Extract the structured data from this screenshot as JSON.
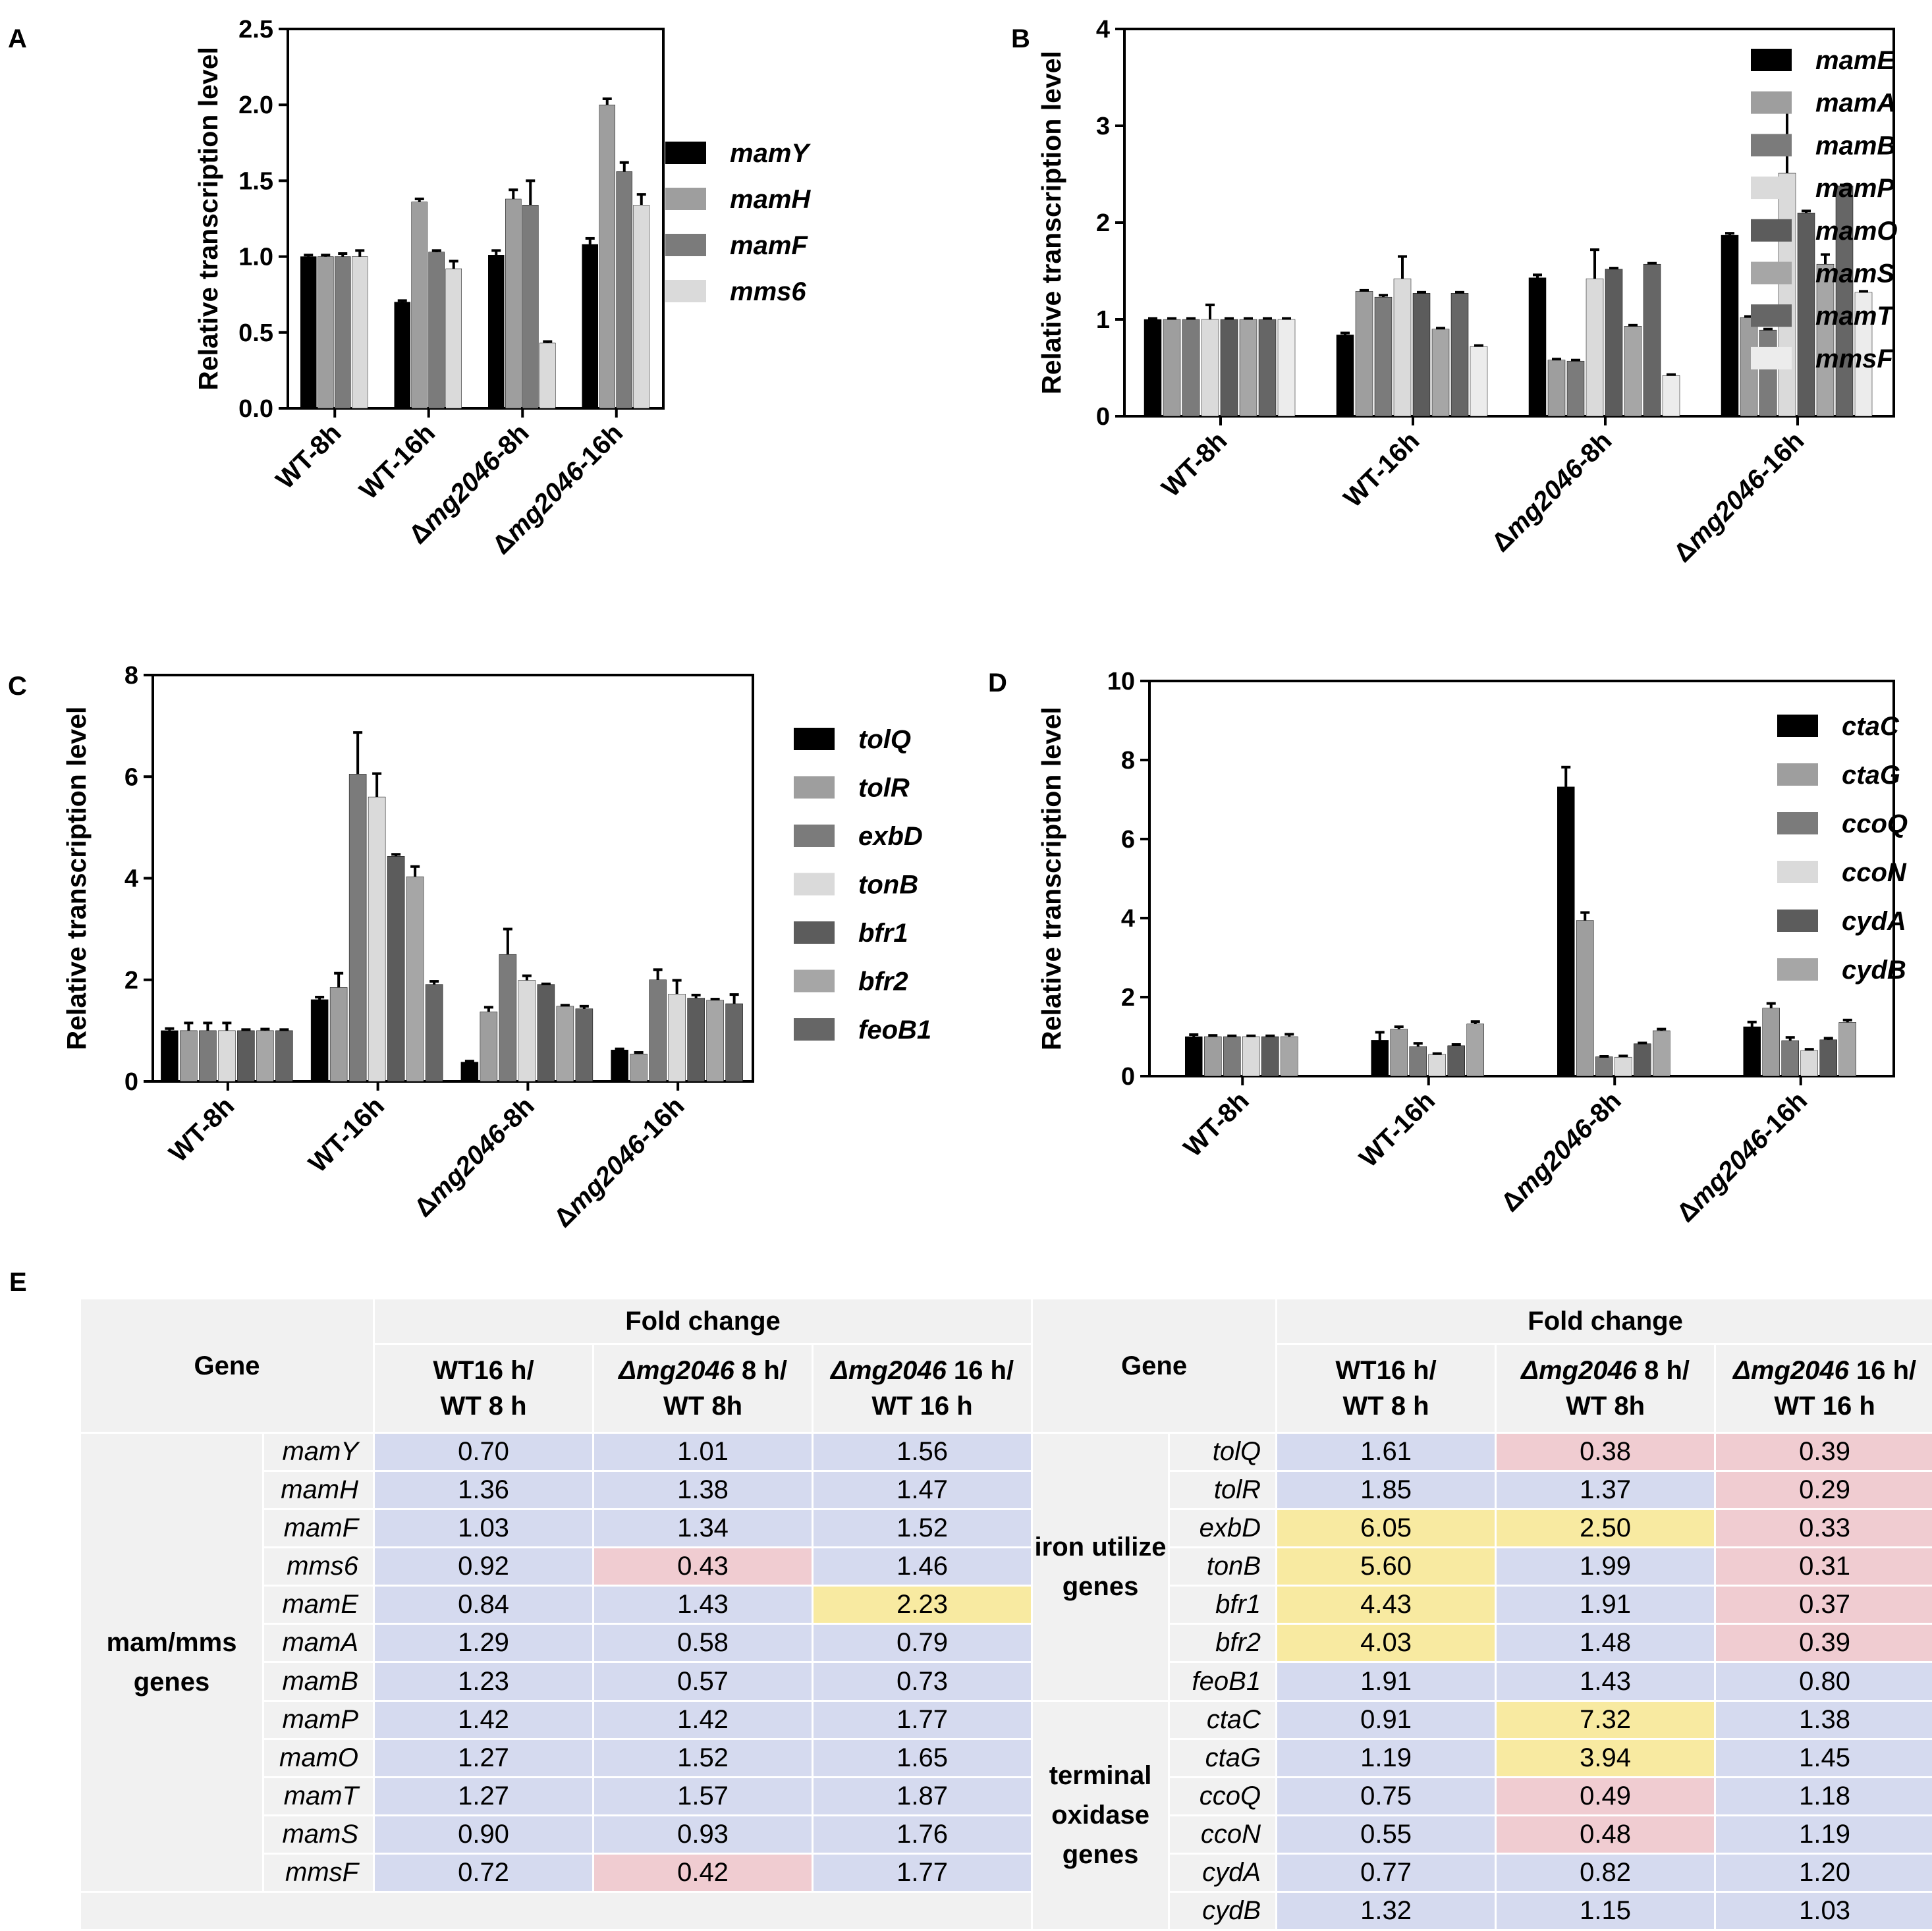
{
  "chart_data": [
    {
      "panel": "A",
      "type": "bar",
      "title": "",
      "xlabel": "",
      "ylabel": "Relative transcription level",
      "ylim": [
        0,
        2.5
      ],
      "yticks": [
        "0.0",
        "0.5",
        "1.0",
        "1.5",
        "2.0",
        "2.5"
      ],
      "ytick_values": [
        0,
        0.5,
        1.0,
        1.5,
        2.0,
        2.5
      ],
      "categories": [
        "WT-8h",
        "WT-16h",
        "Δmg2046-8h",
        "Δmg2046-16h"
      ],
      "series": [
        {
          "name": "mamY",
          "color": "#000000",
          "values": [
            1.0,
            0.7,
            1.01,
            1.08
          ],
          "errors": [
            0.01,
            0.01,
            0.03,
            0.04
          ]
        },
        {
          "name": "mamH",
          "color": "#9e9e9e",
          "values": [
            1.0,
            1.36,
            1.38,
            2.0
          ],
          "errors": [
            0.01,
            0.02,
            0.06,
            0.04
          ]
        },
        {
          "name": "mamF",
          "color": "#7b7b7b",
          "values": [
            1.0,
            1.03,
            1.34,
            1.56
          ],
          "errors": [
            0.02,
            0.01,
            0.16,
            0.06
          ]
        },
        {
          "name": "mms6",
          "color": "#dadada",
          "values": [
            1.0,
            0.92,
            0.43,
            1.34
          ],
          "errors": [
            0.04,
            0.05,
            0.01,
            0.07
          ]
        }
      ]
    },
    {
      "panel": "B",
      "type": "bar",
      "title": "",
      "xlabel": "",
      "ylabel": "Relative transcription level",
      "ylim": [
        0,
        4
      ],
      "yticks": [
        "0",
        "1",
        "2",
        "3",
        "4"
      ],
      "ytick_values": [
        0,
        1,
        2,
        3,
        4
      ],
      "categories": [
        "WT-8h",
        "WT-16h",
        "Δmg2046-8h",
        "Δmg2046-16h"
      ],
      "series": [
        {
          "name": "mamE",
          "color": "#000000",
          "values": [
            1.0,
            0.84,
            1.43,
            1.87
          ],
          "errors": [
            0.01,
            0.02,
            0.03,
            0.02
          ]
        },
        {
          "name": "mamA",
          "color": "#9e9e9e",
          "values": [
            1.0,
            1.29,
            0.58,
            1.02
          ],
          "errors": [
            0.01,
            0.01,
            0.01,
            0.01
          ]
        },
        {
          "name": "mamB",
          "color": "#7b7b7b",
          "values": [
            1.0,
            1.23,
            0.57,
            0.89
          ],
          "errors": [
            0.01,
            0.02,
            0.01,
            0.01
          ]
        },
        {
          "name": "mamP",
          "color": "#dadada",
          "values": [
            1.0,
            1.42,
            1.42,
            2.51
          ],
          "errors": [
            0.15,
            0.23,
            0.3,
            0.63
          ]
        },
        {
          "name": "mamO",
          "color": "#5c5c5c",
          "values": [
            1.0,
            1.27,
            1.52,
            2.1
          ],
          "errors": [
            0.01,
            0.01,
            0.01,
            0.02
          ]
        },
        {
          "name": "mamS",
          "color": "#a6a6a6",
          "values": [
            1.0,
            0.9,
            0.93,
            1.57
          ],
          "errors": [
            0.01,
            0.01,
            0.01,
            0.1
          ]
        },
        {
          "name": "mamT",
          "color": "#666666",
          "values": [
            1.0,
            1.27,
            1.57,
            2.38
          ],
          "errors": [
            0.01,
            0.01,
            0.01,
            0.01
          ]
        },
        {
          "name": "mmsF",
          "color": "#ececec",
          "values": [
            1.0,
            0.72,
            0.42,
            1.28
          ],
          "errors": [
            0.01,
            0.01,
            0.01,
            0.01
          ]
        }
      ]
    },
    {
      "panel": "C",
      "type": "bar",
      "title": "",
      "xlabel": "",
      "ylabel": "Relative transcription level",
      "ylim": [
        0,
        8
      ],
      "yticks": [
        "0",
        "2",
        "4",
        "6",
        "8"
      ],
      "ytick_values": [
        0,
        2,
        4,
        6,
        8
      ],
      "categories": [
        "WT-8h",
        "WT-16h",
        "Δmg2046-8h",
        "Δmg2046-16h"
      ],
      "series": [
        {
          "name": "tolQ",
          "color": "#000000",
          "values": [
            1.0,
            1.61,
            0.38,
            0.62
          ],
          "errors": [
            0.04,
            0.05,
            0.02,
            0.02
          ]
        },
        {
          "name": "tolR",
          "color": "#9e9e9e",
          "values": [
            1.0,
            1.85,
            1.37,
            0.54
          ],
          "errors": [
            0.15,
            0.28,
            0.09,
            0.03
          ]
        },
        {
          "name": "exbD",
          "color": "#7b7b7b",
          "values": [
            1.0,
            6.05,
            2.5,
            2.0
          ],
          "errors": [
            0.15,
            0.82,
            0.5,
            0.2
          ]
        },
        {
          "name": "tonB",
          "color": "#dadada",
          "values": [
            1.0,
            5.6,
            1.99,
            1.72
          ],
          "errors": [
            0.15,
            0.46,
            0.09,
            0.27
          ]
        },
        {
          "name": "bfr1",
          "color": "#5c5c5c",
          "values": [
            1.0,
            4.43,
            1.91,
            1.64
          ],
          "errors": [
            0.02,
            0.04,
            0.01,
            0.06
          ]
        },
        {
          "name": "bfr2",
          "color": "#a6a6a6",
          "values": [
            1.0,
            4.03,
            1.48,
            1.6
          ],
          "errors": [
            0.03,
            0.2,
            0.02,
            0.02
          ]
        },
        {
          "name": "feoB1",
          "color": "#666666",
          "values": [
            1.0,
            1.91,
            1.43,
            1.53
          ],
          "errors": [
            0.02,
            0.06,
            0.05,
            0.18
          ]
        }
      ]
    },
    {
      "panel": "D",
      "type": "bar",
      "title": "",
      "xlabel": "",
      "ylabel": "Relative transcription level",
      "ylim": [
        0,
        10
      ],
      "yticks": [
        "0",
        "2",
        "4",
        "6",
        "8",
        "10"
      ],
      "ytick_values": [
        0,
        2,
        4,
        6,
        8,
        10
      ],
      "categories": [
        "WT-8h",
        "WT-16h",
        "Δmg2046-8h",
        "Δmg2046-16h"
      ],
      "series": [
        {
          "name": "ctaC",
          "color": "#000000",
          "values": [
            1.0,
            0.91,
            7.32,
            1.25
          ],
          "errors": [
            0.05,
            0.2,
            0.5,
            0.12
          ]
        },
        {
          "name": "ctaG",
          "color": "#9e9e9e",
          "values": [
            1.0,
            1.19,
            3.94,
            1.72
          ],
          "errors": [
            0.03,
            0.06,
            0.2,
            0.12
          ]
        },
        {
          "name": "ccoQ",
          "color": "#7b7b7b",
          "values": [
            1.0,
            0.75,
            0.49,
            0.9
          ],
          "errors": [
            0.02,
            0.08,
            0.01,
            0.08
          ]
        },
        {
          "name": "ccoN",
          "color": "#dadada",
          "values": [
            1.0,
            0.55,
            0.48,
            0.65
          ],
          "errors": [
            0.02,
            0.02,
            0.03,
            0.03
          ]
        },
        {
          "name": "cydA",
          "color": "#5c5c5c",
          "values": [
            1.0,
            0.77,
            0.82,
            0.92
          ],
          "errors": [
            0.02,
            0.03,
            0.02,
            0.04
          ]
        },
        {
          "name": "cydB",
          "color": "#a6a6a6",
          "values": [
            1.0,
            1.32,
            1.15,
            1.36
          ],
          "errors": [
            0.06,
            0.06,
            0.04,
            0.06
          ]
        }
      ]
    }
  ],
  "panel_e": {
    "letter": "E",
    "gene_header": "Gene",
    "fold_change_header": "Fold change",
    "col_headers": [
      {
        "prefix": "WT16 h/",
        "prefix_italic": "",
        "line2": "WT 8 h"
      },
      {
        "prefix": " 8 h/",
        "prefix_italic": "Δmg2046",
        "line2": "WT 8h"
      },
      {
        "prefix": " 16 h/",
        "prefix_italic": "Δmg2046",
        "line2": "WT 16 h"
      }
    ],
    "left_group": "mam/mms genes",
    "left_rows": [
      {
        "gene": "mamY",
        "values": [
          "0.70",
          "1.01",
          "1.56"
        ],
        "status": [
          "n",
          "n",
          "n"
        ]
      },
      {
        "gene": "mamH",
        "values": [
          "1.36",
          "1.38",
          "1.47"
        ],
        "status": [
          "n",
          "n",
          "n"
        ]
      },
      {
        "gene": "mamF",
        "values": [
          "1.03",
          "1.34",
          "1.52"
        ],
        "status": [
          "n",
          "n",
          "n"
        ]
      },
      {
        "gene": "mms6",
        "values": [
          "0.92",
          "0.43",
          "1.46"
        ],
        "status": [
          "n",
          "d",
          "n"
        ]
      },
      {
        "gene": "mamE",
        "values": [
          "0.84",
          "1.43",
          "2.23"
        ],
        "status": [
          "n",
          "n",
          "u"
        ]
      },
      {
        "gene": "mamA",
        "values": [
          "1.29",
          "0.58",
          "0.79"
        ],
        "status": [
          "n",
          "n",
          "n"
        ]
      },
      {
        "gene": "mamB",
        "values": [
          "1.23",
          "0.57",
          "0.73"
        ],
        "status": [
          "n",
          "n",
          "n"
        ]
      },
      {
        "gene": "mamP",
        "values": [
          "1.42",
          "1.42",
          "1.77"
        ],
        "status": [
          "n",
          "n",
          "n"
        ]
      },
      {
        "gene": "mamO",
        "values": [
          "1.27",
          "1.52",
          "1.65"
        ],
        "status": [
          "n",
          "n",
          "n"
        ]
      },
      {
        "gene": "mamT",
        "values": [
          "1.27",
          "1.57",
          "1.87"
        ],
        "status": [
          "n",
          "n",
          "n"
        ]
      },
      {
        "gene": "mamS",
        "values": [
          "0.90",
          "0.93",
          "1.76"
        ],
        "status": [
          "n",
          "n",
          "n"
        ]
      },
      {
        "gene": "mmsF",
        "values": [
          "0.72",
          "0.42",
          "1.77"
        ],
        "status": [
          "n",
          "d",
          "n"
        ]
      }
    ],
    "right_groups": [
      {
        "name": "iron utilize genes",
        "rows": [
          {
            "gene": "tolQ",
            "values": [
              "1.61",
              "0.38",
              "0.39"
            ],
            "status": [
              "n",
              "d",
              "d"
            ]
          },
          {
            "gene": "tolR",
            "values": [
              "1.85",
              "1.37",
              "0.29"
            ],
            "status": [
              "n",
              "n",
              "d"
            ]
          },
          {
            "gene": "exbD",
            "values": [
              "6.05",
              "2.50",
              "0.33"
            ],
            "status": [
              "u",
              "u",
              "d"
            ]
          },
          {
            "gene": "tonB",
            "values": [
              "5.60",
              "1.99",
              "0.31"
            ],
            "status": [
              "u",
              "n",
              "d"
            ]
          },
          {
            "gene": "bfr1",
            "values": [
              "4.43",
              "1.91",
              "0.37"
            ],
            "status": [
              "u",
              "n",
              "d"
            ]
          },
          {
            "gene": "bfr2",
            "values": [
              "4.03",
              "1.48",
              "0.39"
            ],
            "status": [
              "u",
              "n",
              "d"
            ]
          },
          {
            "gene": "feoB1",
            "values": [
              "1.91",
              "1.43",
              "0.80"
            ],
            "status": [
              "n",
              "n",
              "n"
            ]
          }
        ]
      },
      {
        "name": "terminal oxidase genes",
        "rows": [
          {
            "gene": "ctaC",
            "values": [
              "0.91",
              "7.32",
              "1.38"
            ],
            "status": [
              "n",
              "u",
              "n"
            ]
          },
          {
            "gene": "ctaG",
            "values": [
              "1.19",
              "3.94",
              "1.45"
            ],
            "status": [
              "n",
              "u",
              "n"
            ]
          },
          {
            "gene": "ccoQ",
            "values": [
              "0.75",
              "0.49",
              "1.18"
            ],
            "status": [
              "n",
              "d",
              "n"
            ]
          },
          {
            "gene": "ccoN",
            "values": [
              "0.55",
              "0.48",
              "1.19"
            ],
            "status": [
              "n",
              "d",
              "n"
            ]
          },
          {
            "gene": "cydA",
            "values": [
              "0.77",
              "0.82",
              "1.20"
            ],
            "status": [
              "n",
              "n",
              "n"
            ]
          },
          {
            "gene": "cydB",
            "values": [
              "1.32",
              "1.15",
              "1.03"
            ],
            "status": [
              "n",
              "n",
              "n"
            ]
          }
        ]
      }
    ]
  }
}
